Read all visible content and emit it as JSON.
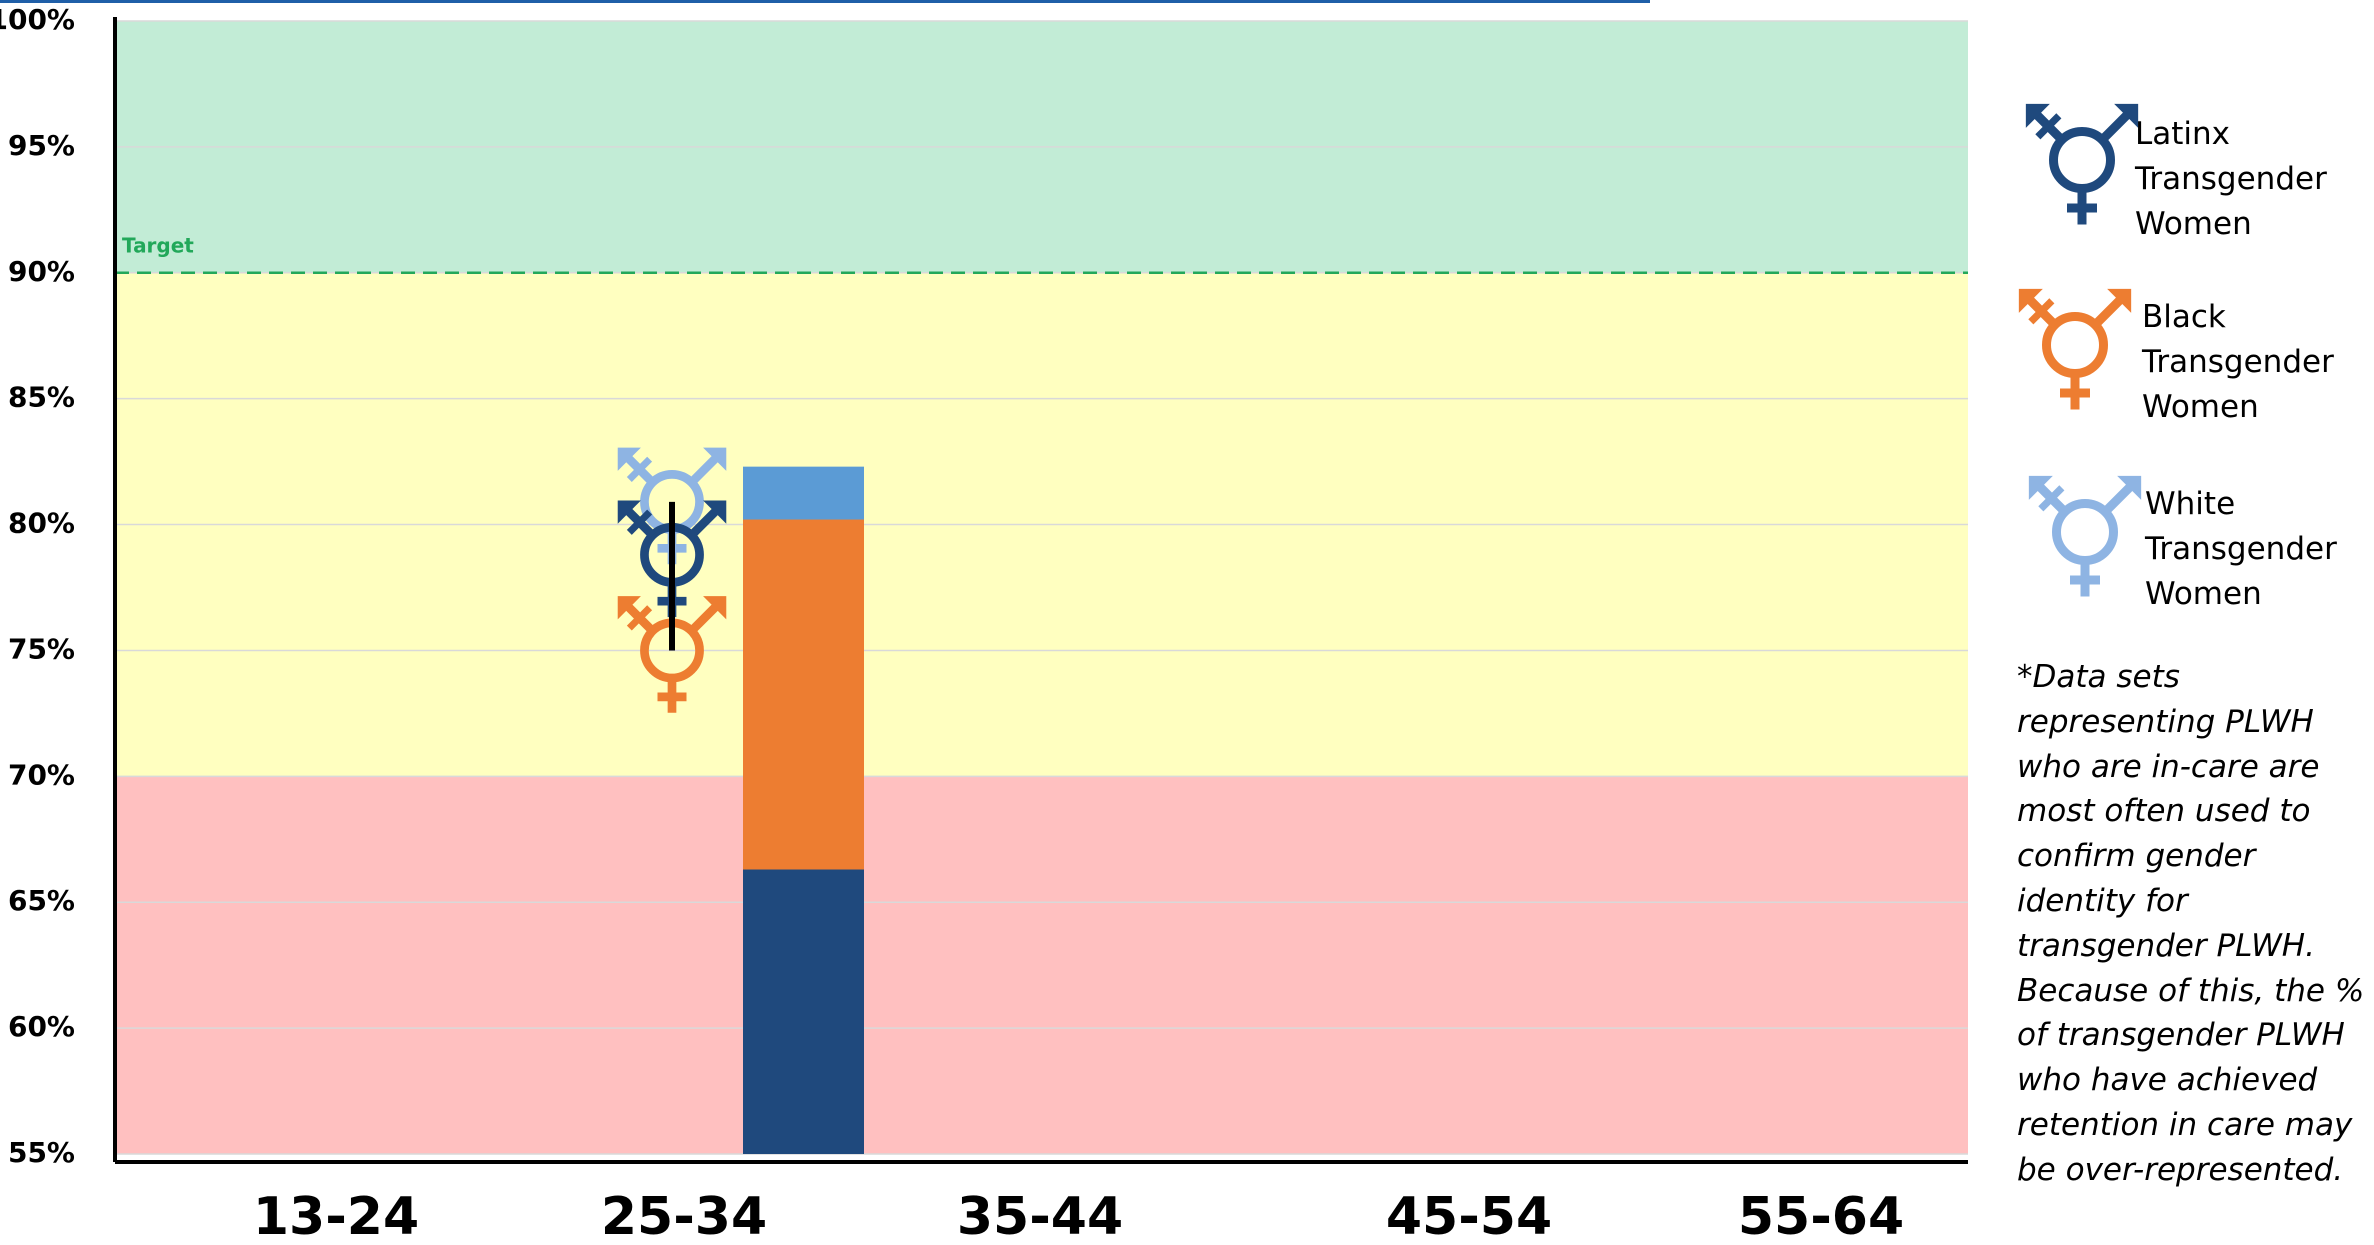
{
  "chart_data": {
    "type": "scatter",
    "categories": [
      "13-24",
      "25-34",
      "35-44",
      "45-54",
      "55-64"
    ],
    "ylim": [
      55,
      100
    ],
    "yticks": [
      {
        "value": 55,
        "label": "55%"
      },
      {
        "value": 60,
        "label": "60%"
      },
      {
        "value": 65,
        "label": "65%"
      },
      {
        "value": 70,
        "label": "70%"
      },
      {
        "value": 75,
        "label": "75%"
      },
      {
        "value": 80,
        "label": "80%"
      },
      {
        "value": 85,
        "label": "85%"
      },
      {
        "value": 90,
        "label": "90%"
      },
      {
        "value": 95,
        "label": "95%"
      },
      {
        "value": 100,
        "label": "100%"
      }
    ],
    "grid": true,
    "bands": [
      {
        "ylim": [
          55,
          70
        ],
        "color": "#ffc0c0"
      },
      {
        "ylim": [
          70,
          90
        ],
        "color": "#ffffc0"
      },
      {
        "ylim": [
          90,
          100
        ],
        "color": "#c2ecd6"
      }
    ],
    "target": {
      "label": "Target",
      "value": 90,
      "color": "#22a85a"
    },
    "series": [
      {
        "name": "Latinx Transgender Women",
        "color": "#1f497d",
        "values": [
          null,
          78.8,
          null,
          null,
          null
        ]
      },
      {
        "name": "Black Transgender Women",
        "color": "#ed7d31",
        "values": [
          null,
          75.0,
          null,
          null,
          null
        ]
      },
      {
        "name": "White Transgender Women",
        "color": "#8eb4e3",
        "values": [
          null,
          80.9,
          null,
          null,
          null
        ]
      }
    ],
    "stacked_bar": [
      {
        "color": "#1f497d",
        "value": 66.3
      },
      {
        "color": "#ed7d31",
        "value": 13.9
      },
      {
        "color": "#5b9bd5",
        "value": 2.1
      }
    ],
    "note": "*Data sets representing PLWH who are in-care are most often used to confirm gender identity for transgender PLWH. Because of this, the % of transgender PLWH who have achieved retention in care may be over-represented."
  }
}
